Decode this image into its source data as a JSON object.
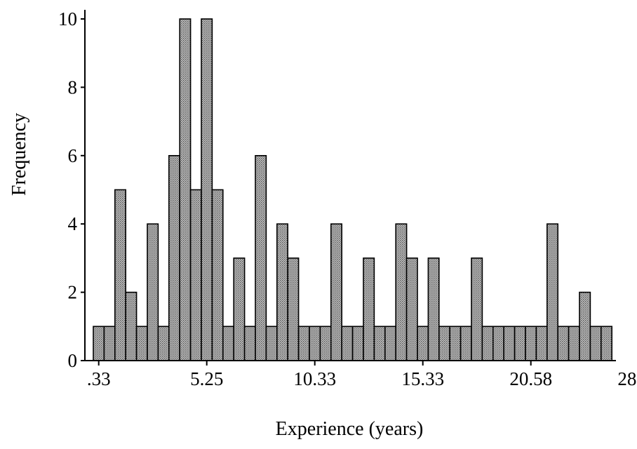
{
  "chart_data": {
    "type": "bar",
    "xlabel": "Experience (years)",
    "ylabel": "Frequency",
    "ylim": [
      0,
      10
    ],
    "y_ticks": [
      0,
      2,
      4,
      6,
      8,
      10
    ],
    "y_tick_labels": [
      "0",
      "2",
      "4",
      "6",
      "8",
      "10"
    ],
    "x_tick_labels": [
      ".33",
      "5.25",
      "10.33",
      "15.33",
      "20.58",
      "28.17"
    ],
    "x_tick_bar_index": [
      0,
      10,
      20,
      30,
      40,
      50
    ],
    "grid": false,
    "bar_fill": "#9c9c9c",
    "values": [
      1,
      1,
      5,
      2,
      1,
      4,
      1,
      6,
      10,
      5,
      10,
      5,
      1,
      3,
      1,
      6,
      1,
      4,
      3,
      1,
      1,
      1,
      4,
      1,
      1,
      3,
      1,
      1,
      4,
      3,
      1,
      3,
      1,
      1,
      1,
      3,
      1,
      1,
      1,
      1,
      1,
      1,
      4,
      1,
      1,
      2,
      1,
      1
    ]
  }
}
